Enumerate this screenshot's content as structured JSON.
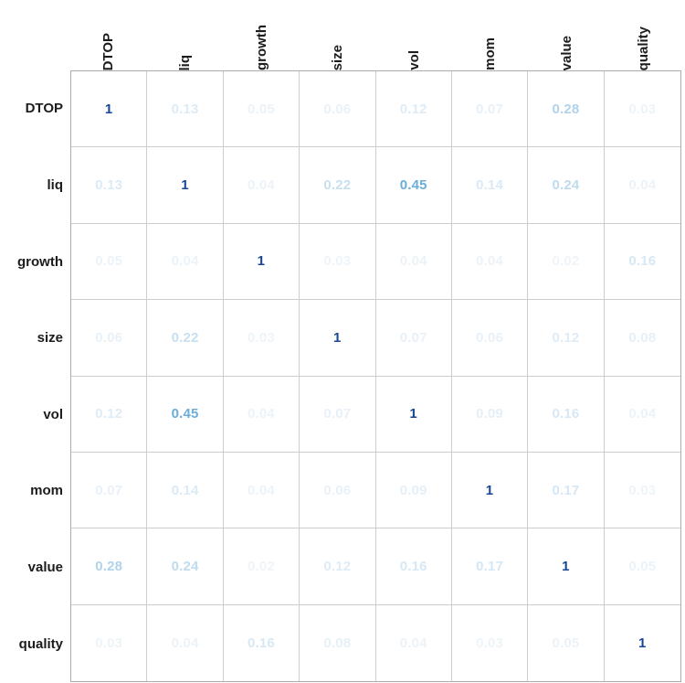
{
  "chart_data": {
    "type": "heatmap",
    "subtype": "correlation-matrix-numbers",
    "title": "",
    "variables": [
      "DTOP",
      "liq",
      "growth",
      "size",
      "vol",
      "mom",
      "value",
      "quality"
    ],
    "matrix": [
      [
        1,
        0.13,
        0.05,
        0.06,
        0.12,
        0.07,
        0.28,
        0.03
      ],
      [
        0.13,
        1,
        0.04,
        0.22,
        0.45,
        0.14,
        0.24,
        0.04
      ],
      [
        0.05,
        0.04,
        1,
        0.03,
        0.04,
        0.04,
        0.02,
        0.16
      ],
      [
        0.06,
        0.22,
        0.03,
        1,
        0.07,
        0.06,
        0.12,
        0.08
      ],
      [
        0.12,
        0.45,
        0.04,
        0.07,
        1,
        0.09,
        0.16,
        0.04
      ],
      [
        0.07,
        0.14,
        0.04,
        0.06,
        0.09,
        1,
        0.17,
        0.03
      ],
      [
        0.28,
        0.24,
        0.02,
        0.12,
        0.16,
        0.17,
        1,
        0.05
      ],
      [
        0.03,
        0.04,
        0.16,
        0.08,
        0.04,
        0.03,
        0.05,
        1
      ]
    ],
    "legend": "none",
    "grid": true
  },
  "colors": {
    "label_color": "#1c1c1c",
    "grid_line": "#cdcdcd",
    "outer_border": "#ababab",
    "background": "#ffffff",
    "value_color_stops": [
      [
        0.0,
        "#f2f6f9"
      ],
      [
        0.1,
        "#e3eef7"
      ],
      [
        0.2,
        "#cfe4f2"
      ],
      [
        0.3,
        "#a8cfe8"
      ],
      [
        0.45,
        "#6aaeda"
      ],
      [
        0.6,
        "#4090c8"
      ],
      [
        0.8,
        "#2a6ab0"
      ],
      [
        1.0,
        "#1a4696"
      ]
    ]
  }
}
